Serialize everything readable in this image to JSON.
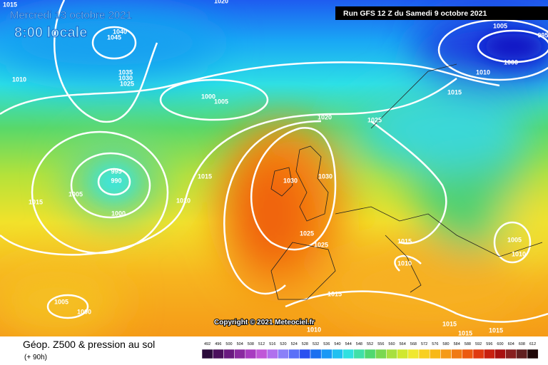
{
  "header": {
    "date": "Mercredi 13 octobre 2021",
    "time": "8:00 locale",
    "run": "Run GFS 12 Z du Samedi 9 octobre 2021"
  },
  "copyright": "Copyright © 2021 Meteociel.fr",
  "footer": {
    "title": "Géop. Z500 & pression au sol",
    "lead": "(+ 90h)"
  },
  "scale": [
    492,
    496,
    500,
    504,
    508,
    512,
    516,
    520,
    524,
    528,
    532,
    536,
    540,
    544,
    548,
    552,
    556,
    560,
    564,
    568,
    572,
    576,
    580,
    584,
    588,
    592,
    596,
    600,
    604,
    608,
    612
  ],
  "isobar_labels": [
    "1015",
    "1020",
    "1040",
    "1045",
    "1035",
    "1030",
    "1025",
    "1010",
    "1000",
    "1005",
    "1020",
    "1025",
    "1015",
    "1005",
    "995",
    "1000",
    "1010",
    "995",
    "990",
    "1005",
    "1015",
    "1000",
    "1010",
    "1015",
    "1030",
    "1030",
    "1025",
    "1025",
    "1015",
    "1010",
    "1005",
    "1010",
    "1015",
    "1005",
    "1000",
    "1010",
    "1015",
    "1015",
    "1015"
  ]
}
